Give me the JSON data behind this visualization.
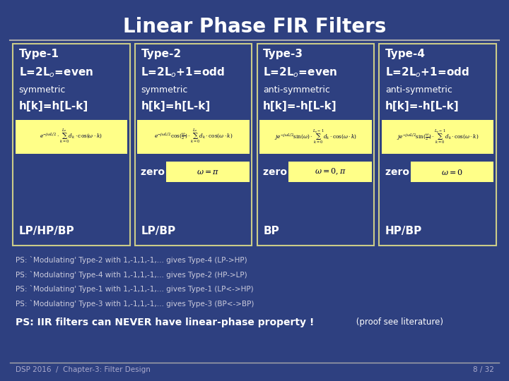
{
  "title": "Linear Phase FIR Filters",
  "bg_color": "#2E4080",
  "title_color": "#FFFFFF",
  "cell_bg": "#2E4080",
  "cell_border": "#CCCC88",
  "formula_bg": "#FFFF88",
  "text_color": "#FFFFFF",
  "small_text_color": "#CCCCCC",
  "highlight_color": "#FFFF88",
  "highlight_text": "#000080",
  "types": [
    {
      "title": "Type-1",
      "line2": "L=2L$_o$=even",
      "line3": "symmetric",
      "line4": "h[k]=h[L-k]",
      "formula": "$e^{-j\\omega L/2}\\cdot\\sum_{k=0}^{L_o}d_k\\cdot\\cos(\\omega\\cdot k)$",
      "zero_at": null,
      "zero_formula": null,
      "bottom": "LP/HP/BP"
    },
    {
      "title": "Type-2",
      "line2": "L=2L$_o$+1=odd",
      "line3": "symmetric",
      "line4": "h[k]=h[L-k]",
      "formula": "$e^{-j\\omega L/2}\\cos(\\frac{\\omega}{2})\\cdot\\sum_{k=0}^{L_o}d_k\\cdot\\cos(\\omega\\cdot k)$",
      "zero_at": "zero at",
      "zero_formula": "$\\omega = \\pi$",
      "bottom": "LP/BP"
    },
    {
      "title": "Type-3",
      "line2": "L=2L$_o$=even",
      "line3": "anti-symmetric",
      "line4": "h[k]=-h[L-k]",
      "formula": "$je^{-j\\omega L/2}\\sin(\\omega)\\cdot\\sum_{k=0}^{L_o-1}d_k\\cdot\\cos(\\omega\\cdot k)$",
      "zero_at": "zero at",
      "zero_formula": "$\\omega = 0, \\pi$",
      "bottom": "BP"
    },
    {
      "title": "Type-4",
      "line2": "L=2L$_o$+1=odd",
      "line3": "anti-symmetric",
      "line4": "h[k]=-h[L-k]",
      "formula": "$je^{-j\\omega L/2}\\sin(\\frac{\\omega}{2})\\cdot\\sum_{k=0}^{L_o-1}d_k\\cdot\\cos(\\omega\\cdot k)$",
      "zero_at": "zero at",
      "zero_formula": "$\\omega = 0$",
      "bottom": "HP/BP"
    }
  ],
  "ps_lines": [
    "PS: `Modulating' Type-2 with 1,-1,1,-1,... gives Type-4 (LP->HP)",
    "PS: `Modulating' Type-4 with 1,-1,1,-1,... gives Type-2 (HP->LP)",
    "PS: `Modulating' Type-1 with 1,-1,1,-1,... gives Type-1 (LP<->HP)",
    "PS: `Modulating' Type-3 with 1,-1,1,-1,... gives Type-3 (BP<->BP)"
  ],
  "ps_bold": "PS: IIR filters can NEVER have linear-phase property !",
  "ps_normal": " (proof see literature)",
  "footer_left": "DSP 2016  /  Chapter-3: Filter Design",
  "footer_right": "8 / 32"
}
